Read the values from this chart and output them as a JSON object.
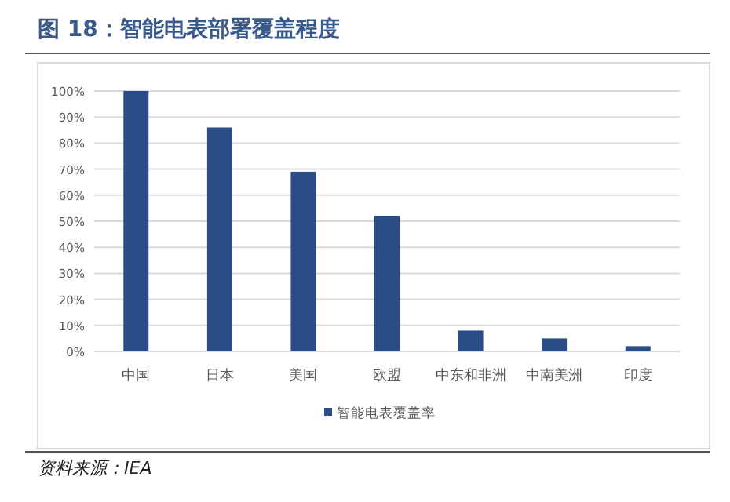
{
  "chart_data": {
    "type": "bar",
    "title": "图 18：智能电表部署覆盖程度",
    "categories": [
      "中国",
      "日本",
      "美国",
      "欧盟",
      "中东和非洲",
      "中南美洲",
      "印度"
    ],
    "series": [
      {
        "name": "智能电表覆盖率",
        "color": "#2a4c87",
        "values": [
          100,
          86,
          69,
          52,
          8,
          5,
          2
        ]
      }
    ],
    "ylim": [
      0,
      100
    ],
    "yticks": [
      {
        "value": 0,
        "label": "0%"
      },
      {
        "value": 10,
        "label": "10%"
      },
      {
        "value": 20,
        "label": "20%"
      },
      {
        "value": 30,
        "label": "30%"
      },
      {
        "value": 40,
        "label": "40%"
      },
      {
        "value": 50,
        "label": "50%"
      },
      {
        "value": 60,
        "label": "60%"
      },
      {
        "value": 70,
        "label": "70%"
      },
      {
        "value": 80,
        "label": "80%"
      },
      {
        "value": 90,
        "label": "90%"
      },
      {
        "value": 100,
        "label": "100%"
      }
    ],
    "grid": "y",
    "legend": "bottom",
    "annotations": [
      "资料来源：IEA"
    ]
  }
}
